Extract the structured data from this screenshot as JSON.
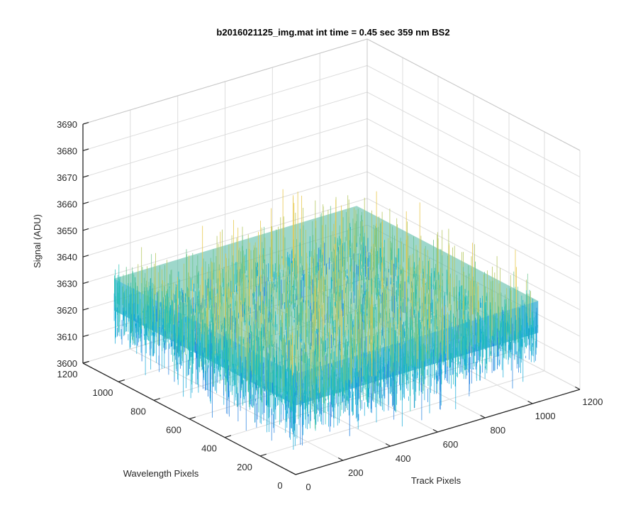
{
  "chart_data": {
    "type": "surface",
    "title": "b2016021125_img.mat int time = 0.45 sec  359 nm BS2",
    "xlabel": "Track Pixels",
    "ylabel": "Wavelength Pixels",
    "zlabel": "Signal (ADU)",
    "xlim": [
      0,
      1200
    ],
    "ylim": [
      0,
      1200
    ],
    "zlim": [
      3600,
      3690
    ],
    "x_ticks": [
      "0",
      "200",
      "400",
      "600",
      "800",
      "1000",
      "1200"
    ],
    "y_ticks": [
      "0",
      "200",
      "400",
      "600",
      "800",
      "1000",
      "1200"
    ],
    "z_ticks": [
      "3600",
      "3610",
      "3620",
      "3630",
      "3640",
      "3650",
      "3660",
      "3670",
      "3680",
      "3690"
    ],
    "data_extent": {
      "x": [
        0,
        1024
      ],
      "y": [
        0,
        1024
      ]
    },
    "signal_mean": 3632,
    "signal_spread": [
      3605,
      3672
    ],
    "grid": true,
    "colormap": [
      "#1f7fe0",
      "#10a8d8",
      "#22bfb6",
      "#6cc58d",
      "#b8c966",
      "#e8c94e"
    ]
  }
}
